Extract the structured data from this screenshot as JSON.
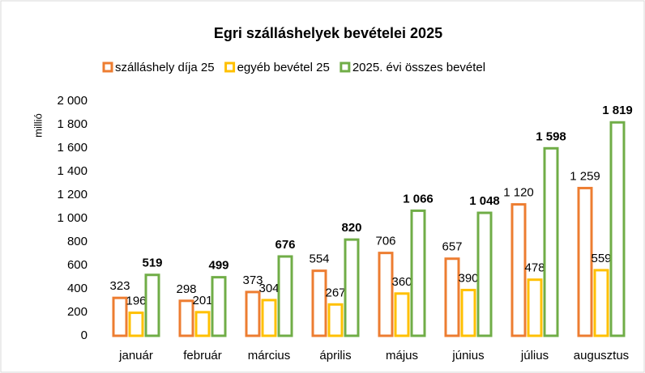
{
  "chart_data": {
    "type": "bar",
    "title": "Egri szálláshelyek bevételei 2025",
    "y_label": "millió",
    "categories": [
      "január",
      "február",
      "március",
      "április",
      "május",
      "június",
      "július",
      "augusztus"
    ],
    "series": [
      {
        "name": "szálláshely díja 25",
        "color": "#ED7D31",
        "values": [
          323,
          298,
          373,
          554,
          706,
          657,
          1120,
          1259
        ],
        "value_labels": [
          "323",
          "298",
          "373",
          "554",
          "706",
          "657",
          "1 120",
          "1 259"
        ]
      },
      {
        "name": "egyéb bevétel 25",
        "color": "#FFC000",
        "values": [
          196,
          201,
          304,
          267,
          360,
          390,
          478,
          559
        ],
        "value_labels": [
          "196",
          "201",
          "304",
          "267",
          "360",
          "390",
          "478",
          "559"
        ]
      },
      {
        "name": "2025. évi összes bevétel",
        "color": "#70AD47",
        "values": [
          519,
          499,
          676,
          820,
          1066,
          1048,
          1598,
          1819
        ],
        "value_labels": [
          "519",
          "499",
          "676",
          "820",
          "1 066",
          "1 048",
          "1 598",
          "1 819"
        ],
        "bold_labels": true
      }
    ],
    "ylim": [
      0,
      2000
    ],
    "yticks": [
      0,
      200,
      400,
      600,
      800,
      {
        "value": 1000,
        "label": "1 000"
      },
      {
        "value": 1200,
        "label": "1 200"
      },
      {
        "value": 1400,
        "label": "1 400"
      },
      {
        "value": 1600,
        "label": "1 600"
      },
      {
        "value": 1800,
        "label": "1 800"
      },
      {
        "value": 2000,
        "label": "2 000"
      }
    ],
    "grid": false,
    "legend": "top"
  }
}
